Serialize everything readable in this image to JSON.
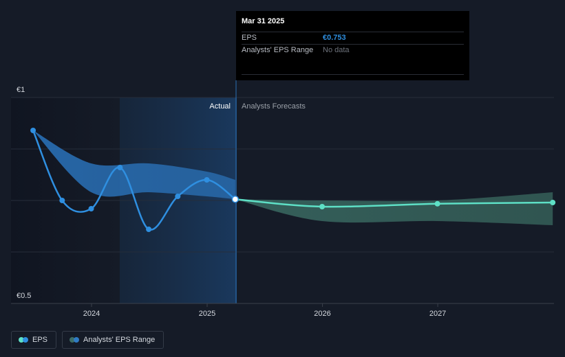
{
  "chart_data": {
    "type": "line",
    "y_tick_labels": [
      "€1",
      "€0.5"
    ],
    "ylim": [
      0.5,
      1.0
    ],
    "x_tick_labels": [
      "2024",
      "2025",
      "2026",
      "2027"
    ],
    "region_labels": {
      "actual": "Actual",
      "forecast": "Analysts Forecasts"
    },
    "series": [
      {
        "name": "EPS",
        "color": "#2f8fe0",
        "points": [
          {
            "x": "2023-06-30",
            "y": 0.92
          },
          {
            "x": "2023-09-30",
            "y": 0.75
          },
          {
            "x": "2023-12-31",
            "y": 0.73
          },
          {
            "x": "2024-03-31",
            "y": 0.83
          },
          {
            "x": "2024-06-30",
            "y": 0.68
          },
          {
            "x": "2024-09-30",
            "y": 0.76
          },
          {
            "x": "2024-12-31",
            "y": 0.8
          },
          {
            "x": "2025-03-31",
            "y": 0.753
          }
        ]
      },
      {
        "name": "EPS forecast",
        "color": "#5ee0c6",
        "points": [
          {
            "x": "2025-03-31",
            "y": 0.753
          },
          {
            "x": "2025-12-31",
            "y": 0.735
          },
          {
            "x": "2026-12-31",
            "y": 0.742
          },
          {
            "x": "2027-12-31",
            "y": 0.745
          }
        ]
      }
    ],
    "ranges": [
      {
        "name": "Analysts' EPS Range (historical)",
        "color": "#2f7bc4",
        "points": [
          {
            "x": "2023-06-30",
            "low": 0.92,
            "high": 0.92
          },
          {
            "x": "2023-12-31",
            "low": 0.77,
            "high": 0.84
          },
          {
            "x": "2024-06-30",
            "low": 0.77,
            "high": 0.84
          },
          {
            "x": "2024-12-31",
            "low": 0.76,
            "high": 0.82
          },
          {
            "x": "2025-03-31",
            "low": 0.753,
            "high": 0.8
          }
        ]
      },
      {
        "name": "Analysts' EPS Range",
        "color": "#3e6e66",
        "points": [
          {
            "x": "2025-03-31",
            "low": 0.753,
            "high": 0.753
          },
          {
            "x": "2025-12-31",
            "low": 0.7,
            "high": 0.75
          },
          {
            "x": "2026-12-31",
            "low": 0.7,
            "high": 0.75
          },
          {
            "x": "2027-12-31",
            "low": 0.69,
            "high": 0.77
          }
        ]
      }
    ],
    "grid": true,
    "highlight_point": {
      "x": "2025-03-31",
      "y": 0.753
    }
  },
  "tooltip": {
    "date": "Mar 31 2025",
    "rows": [
      {
        "label": "EPS",
        "value": "€0.753"
      },
      {
        "label": "Analysts' EPS Range",
        "value": "No data"
      }
    ]
  },
  "legend": {
    "items": [
      {
        "label": "EPS",
        "color1": "#5ee0c6",
        "color2": "#2f8fe0"
      },
      {
        "label": "Analysts' EPS Range",
        "color1": "#3e6e66",
        "color2": "#2f7bc4"
      }
    ]
  }
}
